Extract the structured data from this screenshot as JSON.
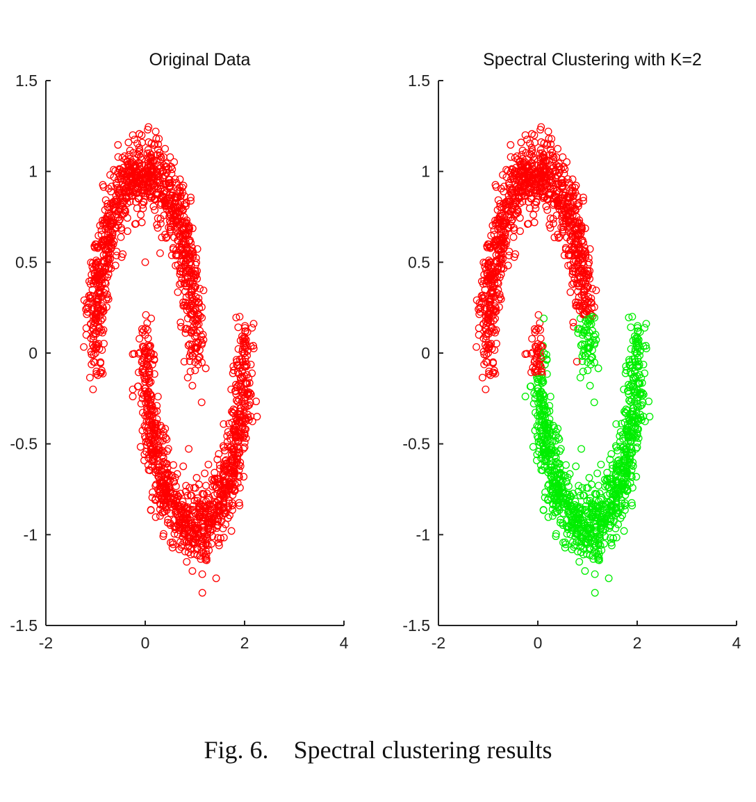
{
  "caption": {
    "label": "Fig. 6.",
    "text": "Spectral clustering results"
  },
  "colors": {
    "cluster_1": "#ff0000",
    "cluster_2": "#00ee00",
    "axis": "#222222"
  },
  "chart_data": [
    {
      "type": "scatter",
      "title": "Original Data",
      "xlabel": "",
      "ylabel": "",
      "xlim": [
        -2,
        4
      ],
      "ylim": [
        -1.5,
        1.5
      ],
      "xticks": [
        "-2",
        "0",
        "2",
        "4"
      ],
      "yticks": [
        "1.5",
        "1",
        "0.5",
        "0",
        "-0.5",
        "-1",
        "-1.5"
      ],
      "grid": false,
      "marker": "open-circle",
      "dataset": "two interleaved half-moons, roughly 2000 noisy points (noise sd ≈ 0.1); upper moon centred near (0, 0) spanning x from -1.2 to 1.3 with peak y ≈ 1.2; lower moon centred near (1, 0.5) spanning x from -0.2 to 2.3 with trough y ≈ -1.3",
      "series": [
        {
          "color": "#ff0000",
          "points": [
            [
              -1.0,
              0.0
            ],
            [
              -0.9,
              0.44
            ],
            [
              -0.7,
              0.71
            ],
            [
              -0.5,
              0.87
            ],
            [
              -0.3,
              0.95
            ],
            [
              0.0,
              1.0
            ],
            [
              0.3,
              0.95
            ],
            [
              0.5,
              0.87
            ],
            [
              0.7,
              0.71
            ],
            [
              0.9,
              0.44
            ],
            [
              1.0,
              0.0
            ],
            [
              0.0,
              0.5
            ],
            [
              0.1,
              0.0
            ],
            [
              0.3,
              -0.45
            ],
            [
              0.5,
              -0.7
            ],
            [
              0.7,
              -0.86
            ],
            [
              1.0,
              -1.0
            ],
            [
              1.3,
              -0.95
            ],
            [
              1.5,
              -0.87
            ],
            [
              1.7,
              -0.71
            ],
            [
              1.9,
              -0.44
            ],
            [
              2.0,
              0.0
            ],
            [
              -1.05,
              -0.2
            ],
            [
              -0.9,
              -0.05
            ],
            [
              -1.1,
              0.38
            ],
            [
              0.05,
              1.23
            ],
            [
              -0.25,
              1.2
            ],
            [
              0.95,
              -0.18
            ],
            [
              2.25,
              -0.35
            ],
            [
              1.15,
              -1.32
            ],
            [
              0.95,
              -1.2
            ],
            [
              1.9,
              0.2
            ],
            [
              0.0,
              0.1
            ],
            [
              -0.25,
              -0.2
            ],
            [
              0.3,
              0.55
            ]
          ]
        }
      ]
    },
    {
      "type": "scatter",
      "title": "Spectral Clustering with K=2",
      "xlabel": "",
      "ylabel": "",
      "xlim": [
        -2,
        4
      ],
      "ylim": [
        -1.5,
        1.5
      ],
      "xticks": [
        "-2",
        "0",
        "2",
        "4"
      ],
      "yticks": [
        "1.5",
        "1",
        "0.5",
        "0",
        "-0.5",
        "-1",
        "-1.5"
      ],
      "grid": false,
      "marker": "open-circle",
      "dataset": "same two half-moons split into two clusters; red cluster is the upper moon plus the tip of the lower moon near x ≈ -0.1..0.1, y > -0.12; green cluster is the rest of the lower moon plus the tip of the upper moon near x ≈ 0.8..1.2, y < 0.2",
      "series": [
        {
          "color": "#ff0000",
          "points": [
            [
              -1.0,
              0.0
            ],
            [
              -0.9,
              0.44
            ],
            [
              -0.7,
              0.71
            ],
            [
              -0.5,
              0.87
            ],
            [
              -0.3,
              0.95
            ],
            [
              0.0,
              1.0
            ],
            [
              0.3,
              0.95
            ],
            [
              0.5,
              0.87
            ],
            [
              0.7,
              0.71
            ],
            [
              0.9,
              0.44
            ],
            [
              0.95,
              0.25
            ],
            [
              -1.05,
              -0.2
            ],
            [
              -0.9,
              -0.05
            ],
            [
              -1.1,
              0.38
            ],
            [
              0.05,
              1.23
            ],
            [
              -0.25,
              1.2
            ],
            [
              0.0,
              0.05
            ],
            [
              -0.1,
              -0.08
            ],
            [
              0.0,
              -0.1
            ]
          ]
        },
        {
          "color": "#00ee00",
          "points": [
            [
              1.0,
              0.0
            ],
            [
              0.9,
              0.1
            ],
            [
              1.1,
              0.2
            ],
            [
              1.05,
              -0.18
            ],
            [
              0.1,
              -0.15
            ],
            [
              0.3,
              -0.45
            ],
            [
              0.5,
              -0.7
            ],
            [
              0.7,
              -0.86
            ],
            [
              1.0,
              -1.0
            ],
            [
              1.3,
              -0.95
            ],
            [
              1.5,
              -0.87
            ],
            [
              1.7,
              -0.71
            ],
            [
              1.9,
              -0.44
            ],
            [
              2.0,
              0.0
            ],
            [
              2.25,
              -0.35
            ],
            [
              1.15,
              -1.32
            ],
            [
              0.95,
              -1.2
            ],
            [
              1.9,
              0.2
            ]
          ]
        }
      ]
    }
  ]
}
